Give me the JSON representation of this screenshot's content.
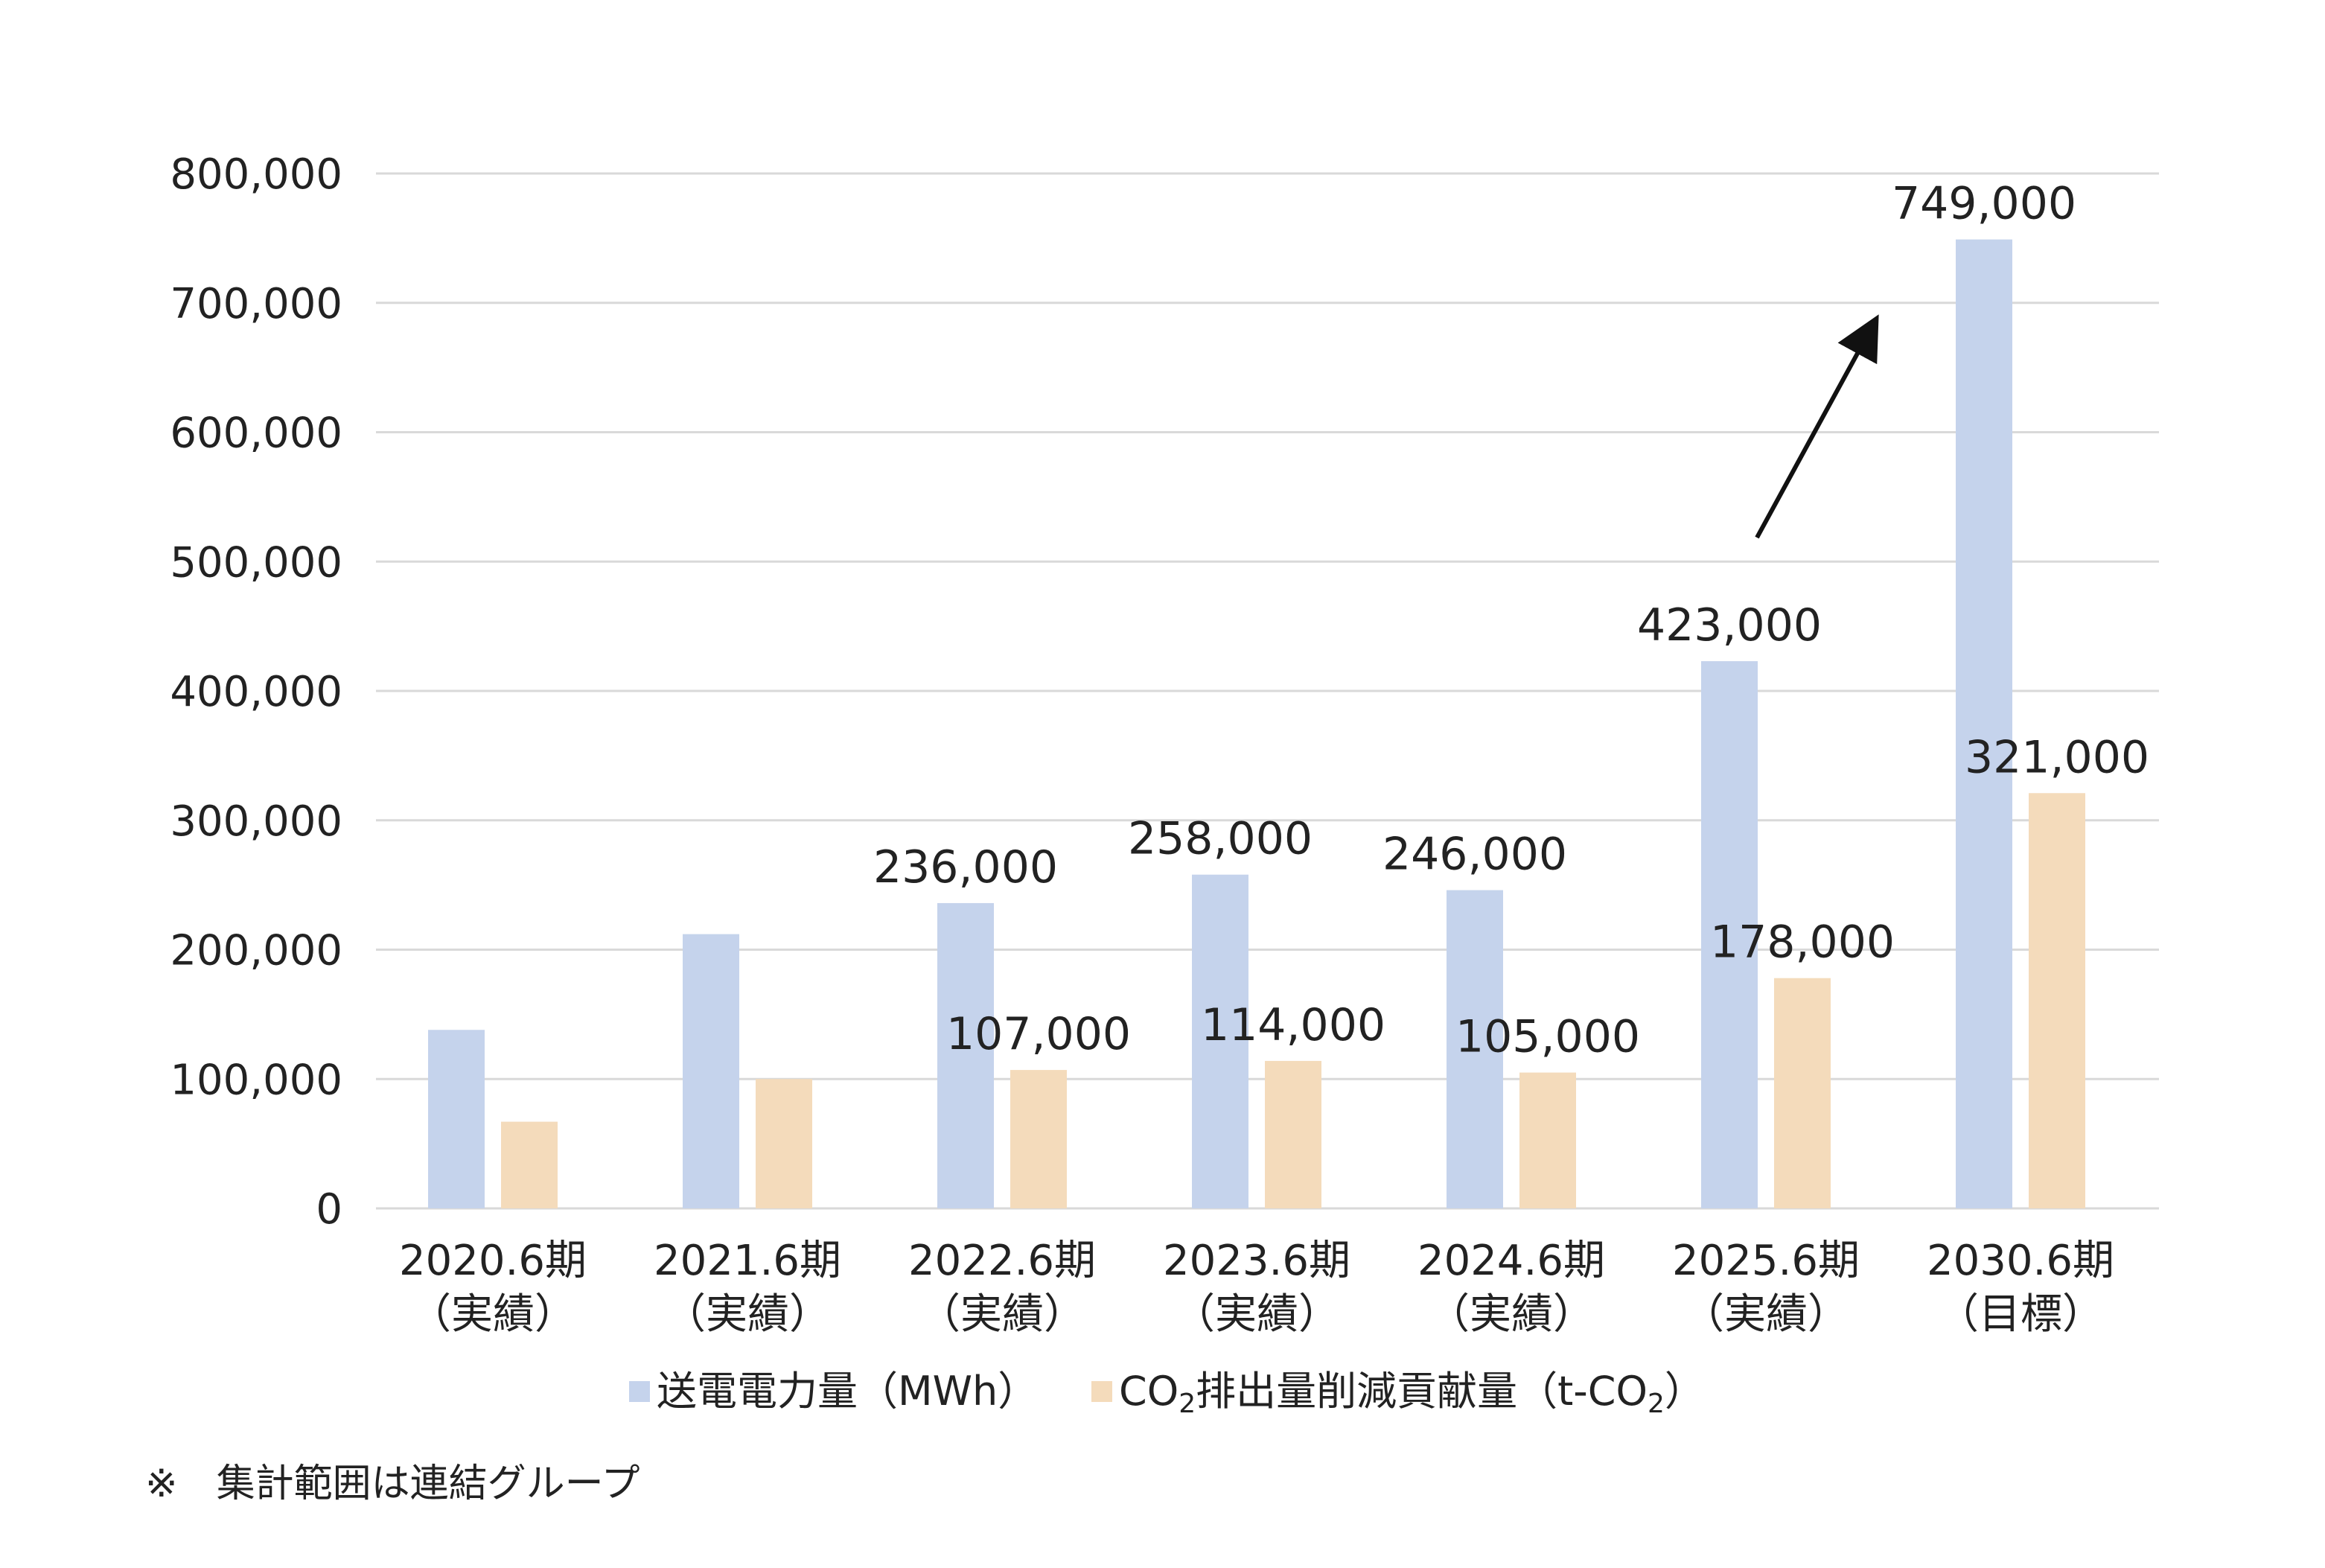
{
  "chart_data": {
    "type": "bar",
    "categories": [
      {
        "line1": "2020.6期",
        "line2": "（実績）"
      },
      {
        "line1": "2021.6期",
        "line2": "（実績）"
      },
      {
        "line1": "2022.6期",
        "line2": "（実績）"
      },
      {
        "line1": "2023.6期",
        "line2": "（実績）"
      },
      {
        "line1": "2024.6期",
        "line2": "（実績）"
      },
      {
        "line1": "2025.6期",
        "line2": "（実績）"
      },
      {
        "line1": "2030.6期",
        "line2": "（目標）"
      }
    ],
    "series": [
      {
        "name": "送電電力量（MWh）",
        "color": "#c5d3ec",
        "values": [
          138000,
          212000,
          236000,
          258000,
          246000,
          423000,
          749000
        ],
        "labels": [
          "",
          "",
          "236,000",
          "258,000",
          "246,000",
          "423,000",
          "749,000"
        ]
      },
      {
        "name_parts": [
          "CO",
          "2",
          "排出量削減貢献量（t-CO",
          "2",
          "）"
        ],
        "color": "#f4dbbb",
        "values": [
          67000,
          100000,
          107000,
          114000,
          105000,
          178000,
          321000
        ],
        "labels": [
          "",
          "",
          "107,000",
          "114,000",
          "105,000",
          "178,000",
          "321,000"
        ]
      }
    ],
    "ylim": [
      0,
      800000
    ],
    "yticks": [
      0,
      100000,
      200000,
      300000,
      400000,
      500000,
      600000,
      700000,
      800000
    ],
    "ytick_labels": [
      "0",
      "100,000",
      "200,000",
      "300,000",
      "400,000",
      "500,000",
      "600,000",
      "700,000",
      "800,000"
    ],
    "grid": true,
    "gridline_color": "#d9d9d9",
    "legend_position": "bottom",
    "annotation": "arrow-up-right"
  },
  "footnote": "※　集計範囲は連結グループ"
}
